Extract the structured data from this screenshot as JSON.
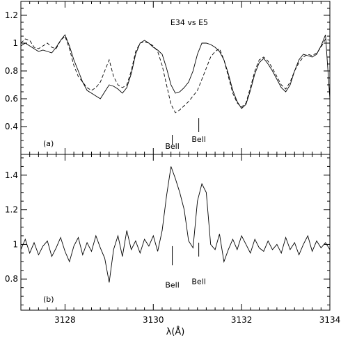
{
  "chart_data": [
    {
      "panel_label": "(a)",
      "type": "line",
      "title": "E34 vs E5",
      "xlabel": "",
      "ylabel": "",
      "xlim": [
        3127,
        3134
      ],
      "ylim": [
        0.2,
        1.3
      ],
      "yticks": [
        0.4,
        0.6,
        0.8,
        1,
        1.2
      ],
      "yticklabels": [
        "0.4",
        "0.6",
        "0.8",
        "1",
        "1.2"
      ],
      "xticks": [
        3128,
        3130,
        3132,
        3134
      ],
      "annotations": [
        {
          "text": "Bell",
          "x": 3130.43,
          "marker_y": [
            0.34,
            0.27
          ],
          "label_y": 0.24
        },
        {
          "text": "Bell",
          "x": 3131.03,
          "marker_y": [
            0.36,
            0.46
          ],
          "label_y": 0.29
        }
      ],
      "series": [
        {
          "style": "solid",
          "x": [
            3127.0,
            3127.1,
            3127.2,
            3127.3,
            3127.4,
            3127.5,
            3127.6,
            3127.7,
            3127.8,
            3127.9,
            3128.0,
            3128.1,
            3128.2,
            3128.3,
            3128.4,
            3128.5,
            3128.6,
            3128.7,
            3128.8,
            3128.9,
            3129.0,
            3129.1,
            3129.2,
            3129.3,
            3129.4,
            3129.5,
            3129.6,
            3129.7,
            3129.8,
            3129.9,
            3130.0,
            3130.1,
            3130.2,
            3130.3,
            3130.4,
            3130.5,
            3130.6,
            3130.7,
            3130.8,
            3130.9,
            3131.0,
            3131.1,
            3131.2,
            3131.3,
            3131.4,
            3131.5,
            3131.6,
            3131.7,
            3131.8,
            3131.9,
            3132.0,
            3132.1,
            3132.2,
            3132.3,
            3132.4,
            3132.5,
            3132.6,
            3132.7,
            3132.8,
            3132.9,
            3133.0,
            3133.1,
            3133.2,
            3133.3,
            3133.4,
            3133.5,
            3133.6,
            3133.7,
            3133.8,
            3133.9,
            3134.0
          ],
          "y": [
            0.98,
            1.0,
            0.98,
            0.96,
            0.94,
            0.95,
            0.94,
            0.93,
            0.97,
            1.02,
            1.06,
            0.98,
            0.88,
            0.8,
            0.72,
            0.66,
            0.64,
            0.62,
            0.6,
            0.65,
            0.7,
            0.69,
            0.67,
            0.64,
            0.68,
            0.78,
            0.92,
            1.0,
            1.02,
            1.0,
            0.97,
            0.95,
            0.92,
            0.82,
            0.7,
            0.64,
            0.65,
            0.68,
            0.72,
            0.8,
            0.92,
            1.0,
            1.0,
            0.99,
            0.97,
            0.94,
            0.88,
            0.78,
            0.66,
            0.58,
            0.53,
            0.56,
            0.66,
            0.78,
            0.86,
            0.89,
            0.85,
            0.8,
            0.74,
            0.68,
            0.65,
            0.7,
            0.8,
            0.88,
            0.92,
            0.91,
            0.9,
            0.92,
            0.98,
            1.06,
            0.6
          ]
        },
        {
          "style": "dashed",
          "x": [
            3127.0,
            3127.1,
            3127.2,
            3127.3,
            3127.4,
            3127.5,
            3127.6,
            3127.7,
            3127.8,
            3127.9,
            3128.0,
            3128.1,
            3128.2,
            3128.3,
            3128.4,
            3128.5,
            3128.6,
            3128.7,
            3128.8,
            3128.9,
            3129.0,
            3129.1,
            3129.2,
            3129.3,
            3129.4,
            3129.5,
            3129.6,
            3129.7,
            3129.8,
            3129.9,
            3130.0,
            3130.1,
            3130.2,
            3130.3,
            3130.4,
            3130.5,
            3130.6,
            3130.7,
            3130.8,
            3130.9,
            3131.0,
            3131.1,
            3131.2,
            3131.3,
            3131.4,
            3131.5,
            3131.6,
            3131.7,
            3131.8,
            3131.9,
            3132.0,
            3132.1,
            3132.2,
            3132.3,
            3132.4,
            3132.5,
            3132.6,
            3132.7,
            3132.8,
            3132.9,
            3133.0,
            3133.1,
            3133.2,
            3133.3,
            3133.4,
            3133.5,
            3133.6,
            3133.7,
            3133.8,
            3133.9,
            3134.0
          ],
          "y": [
            1.0,
            1.03,
            1.02,
            0.97,
            0.96,
            0.98,
            1.0,
            0.97,
            0.96,
            1.02,
            1.05,
            0.96,
            0.84,
            0.76,
            0.72,
            0.68,
            0.66,
            0.68,
            0.72,
            0.8,
            0.88,
            0.76,
            0.7,
            0.68,
            0.7,
            0.8,
            0.94,
            1.0,
            1.01,
            1.0,
            0.98,
            0.94,
            0.84,
            0.7,
            0.56,
            0.5,
            0.52,
            0.55,
            0.58,
            0.62,
            0.66,
            0.74,
            0.82,
            0.9,
            0.94,
            0.96,
            0.88,
            0.76,
            0.64,
            0.57,
            0.54,
            0.57,
            0.68,
            0.8,
            0.88,
            0.9,
            0.87,
            0.82,
            0.76,
            0.7,
            0.67,
            0.72,
            0.8,
            0.86,
            0.9,
            0.92,
            0.91,
            0.93,
            0.97,
            1.03,
            1.02
          ]
        }
      ]
    },
    {
      "panel_label": "(b)",
      "type": "line",
      "title": "",
      "xlabel": "λ(Å)",
      "ylabel": "",
      "xlim": [
        3127,
        3134
      ],
      "ylim": [
        0.62,
        1.52
      ],
      "yticks": [
        0.8,
        1,
        1.2,
        1.4
      ],
      "yticklabels": [
        "0.8",
        "1",
        "1.2",
        "1.4"
      ],
      "xticks": [
        3128,
        3130,
        3132,
        3134
      ],
      "xticklabels": [
        "3128",
        "3130",
        "3132",
        "3134"
      ],
      "annotations": [
        {
          "text": "Bell",
          "x": 3130.43,
          "marker_y": [
            0.88,
            0.99
          ],
          "label_y": 0.75
        },
        {
          "text": "Bell",
          "x": 3131.03,
          "marker_y": [
            0.93,
            1.01
          ],
          "label_y": 0.77
        }
      ],
      "series": [
        {
          "style": "solid",
          "x": [
            3127.0,
            3127.1,
            3127.2,
            3127.3,
            3127.4,
            3127.5,
            3127.6,
            3127.7,
            3127.8,
            3127.9,
            3128.0,
            3128.1,
            3128.2,
            3128.3,
            3128.4,
            3128.5,
            3128.6,
            3128.7,
            3128.8,
            3128.9,
            3129.0,
            3129.1,
            3129.2,
            3129.3,
            3129.4,
            3129.5,
            3129.6,
            3129.7,
            3129.8,
            3129.9,
            3130.0,
            3130.1,
            3130.2,
            3130.3,
            3130.4,
            3130.5,
            3130.6,
            3130.7,
            3130.8,
            3130.9,
            3131.0,
            3131.1,
            3131.2,
            3131.3,
            3131.4,
            3131.5,
            3131.6,
            3131.7,
            3131.8,
            3131.9,
            3132.0,
            3132.1,
            3132.2,
            3132.3,
            3132.4,
            3132.5,
            3132.6,
            3132.7,
            3132.8,
            3132.9,
            3133.0,
            3133.1,
            3133.2,
            3133.3,
            3133.4,
            3133.5,
            3133.6,
            3133.7,
            3133.8,
            3133.9,
            3134.0
          ],
          "y": [
            0.97,
            1.03,
            0.95,
            1.01,
            0.94,
            0.99,
            1.02,
            0.93,
            0.98,
            1.04,
            0.96,
            0.9,
            0.99,
            1.04,
            0.94,
            1.01,
            0.96,
            1.05,
            0.98,
            0.92,
            0.78,
            0.97,
            1.05,
            0.93,
            1.08,
            0.97,
            1.02,
            0.95,
            1.03,
            0.99,
            1.05,
            0.96,
            1.08,
            1.28,
            1.45,
            1.38,
            1.3,
            1.2,
            1.02,
            0.98,
            1.25,
            1.35,
            1.3,
            1.0,
            0.97,
            1.06,
            0.9,
            0.97,
            1.03,
            0.97,
            1.05,
            1.0,
            0.95,
            1.03,
            0.98,
            0.96,
            1.02,
            0.97,
            1.0,
            0.95,
            1.04,
            0.97,
            1.01,
            0.94,
            1.0,
            1.05,
            0.96,
            1.02,
            0.98,
            1.01,
            0.97
          ]
        }
      ]
    }
  ]
}
